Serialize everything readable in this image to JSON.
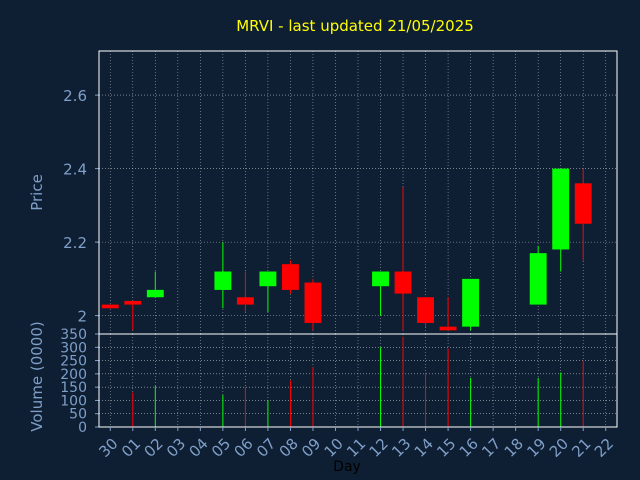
{
  "title": "MRVI - last updated 21/05/2025",
  "colors": {
    "background": "#0f1f33",
    "title": "#ffff00",
    "axis_text": "#7f9fc8",
    "grid": "#ffffff",
    "up": "#00ff00",
    "down": "#ff0000"
  },
  "chart_data": [
    {
      "type": "candlestick",
      "ylabel": "Price",
      "ylim": [
        1.95,
        2.72
      ],
      "yticks": [
        2,
        2.2,
        2.4,
        2.6
      ],
      "ytick_labels": [
        "2",
        "2.2",
        "2.4",
        "2.6"
      ],
      "grid": true,
      "candles": [
        {
          "x": 0,
          "open": 2.02,
          "close": 2.03,
          "high": 2.03,
          "low": 2.02,
          "dir": "down"
        },
        {
          "x": 1,
          "open": 2.04,
          "close": 2.03,
          "high": 2.04,
          "low": 1.96,
          "dir": "down"
        },
        {
          "x": 2,
          "open": 2.05,
          "close": 2.07,
          "high": 2.12,
          "low": 2.05,
          "dir": "up"
        },
        {
          "x": 5,
          "open": 2.07,
          "close": 2.12,
          "high": 2.2,
          "low": 2.02,
          "dir": "up"
        },
        {
          "x": 6,
          "open": 2.05,
          "close": 2.03,
          "high": 2.12,
          "low": 2.01,
          "dir": "down"
        },
        {
          "x": 7,
          "open": 2.08,
          "close": 2.12,
          "high": 2.12,
          "low": 2.01,
          "dir": "up"
        },
        {
          "x": 8,
          "open": 2.14,
          "close": 2.07,
          "high": 2.15,
          "low": 2.06,
          "dir": "down"
        },
        {
          "x": 9,
          "open": 2.09,
          "close": 1.98,
          "high": 2.1,
          "low": 1.96,
          "dir": "down"
        },
        {
          "x": 12,
          "open": 2.08,
          "close": 2.12,
          "high": 2.12,
          "low": 2.0,
          "dir": "up"
        },
        {
          "x": 13,
          "open": 2.12,
          "close": 2.06,
          "high": 2.35,
          "low": 1.96,
          "dir": "down"
        },
        {
          "x": 14,
          "open": 2.05,
          "close": 1.98,
          "high": 2.05,
          "low": 1.97,
          "dir": "down"
        },
        {
          "x": 15,
          "open": 1.97,
          "close": 1.96,
          "high": 2.05,
          "low": 1.96,
          "dir": "down"
        },
        {
          "x": 16,
          "open": 1.97,
          "close": 2.1,
          "high": 2.1,
          "low": 1.96,
          "dir": "up"
        },
        {
          "x": 19,
          "open": 2.03,
          "close": 2.17,
          "high": 2.19,
          "low": 2.03,
          "dir": "up"
        },
        {
          "x": 20,
          "open": 2.18,
          "close": 2.4,
          "high": 2.4,
          "low": 2.12,
          "dir": "up"
        },
        {
          "x": 21,
          "open": 2.36,
          "close": 2.25,
          "high": 2.4,
          "low": 2.15,
          "dir": "down"
        }
      ]
    },
    {
      "type": "bar",
      "ylabel": "Volume (0000)",
      "xlabel": "Day",
      "ylim": [
        0,
        350
      ],
      "yticks": [
        0,
        50,
        100,
        150,
        200,
        250,
        300,
        350
      ],
      "ytick_labels": [
        "0",
        "50",
        "100",
        "150",
        "200",
        "250",
        "300",
        "350"
      ],
      "categories": [
        "30",
        "01",
        "02",
        "03",
        "04",
        "05",
        "06",
        "07",
        "08",
        "09",
        "10",
        "11",
        "12",
        "13",
        "14",
        "15",
        "16",
        "17",
        "18",
        "19",
        "20",
        "21",
        "22"
      ],
      "bars": [
        {
          "x": 1,
          "value": 130,
          "dir": "down"
        },
        {
          "x": 2,
          "value": 155,
          "dir": "up"
        },
        {
          "x": 5,
          "value": 120,
          "dir": "up"
        },
        {
          "x": 6,
          "value": 150,
          "dir": "down"
        },
        {
          "x": 7,
          "value": 100,
          "dir": "up"
        },
        {
          "x": 8,
          "value": 175,
          "dir": "down"
        },
        {
          "x": 9,
          "value": 225,
          "dir": "down"
        },
        {
          "x": 12,
          "value": 300,
          "dir": "up"
        },
        {
          "x": 13,
          "value": 340,
          "dir": "down"
        },
        {
          "x": 14,
          "value": 205,
          "dir": "down"
        },
        {
          "x": 15,
          "value": 295,
          "dir": "down"
        },
        {
          "x": 16,
          "value": 185,
          "dir": "up"
        },
        {
          "x": 19,
          "value": 185,
          "dir": "up"
        },
        {
          "x": 20,
          "value": 205,
          "dir": "up"
        },
        {
          "x": 21,
          "value": 250,
          "dir": "down"
        }
      ]
    }
  ]
}
